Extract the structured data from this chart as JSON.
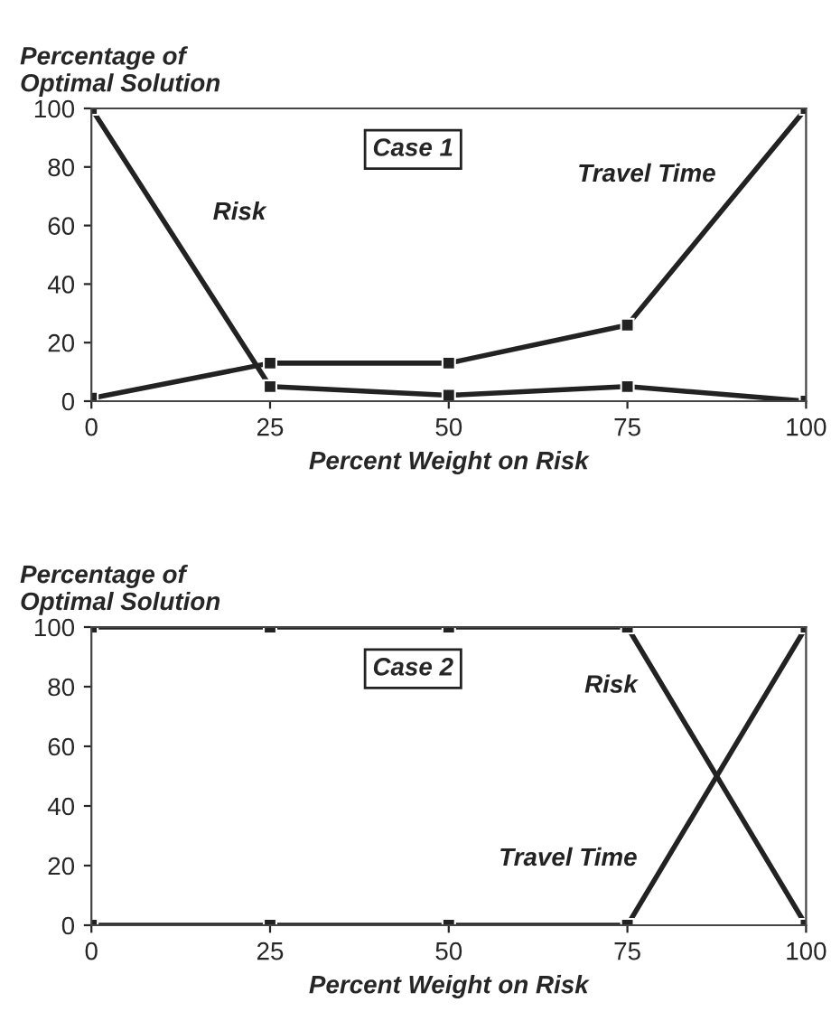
{
  "chart_data": [
    {
      "type": "line",
      "ylabel": "Percentage of\nOptimal Solution",
      "xlabel": "Percent Weight on Risk",
      "annotations": [
        "Case 1"
      ],
      "x": [
        0,
        25,
        50,
        75,
        100
      ],
      "xlim": [
        0,
        100
      ],
      "xticks": [
        0,
        25,
        50,
        75,
        100
      ],
      "ylim": [
        0,
        100
      ],
      "yticks": [
        0,
        20,
        40,
        60,
        80,
        100
      ],
      "marker": "square",
      "grid": false,
      "legend": false,
      "series": [
        {
          "name": "Risk",
          "color": "#222222",
          "values": [
            100,
            5,
            2,
            5,
            0
          ]
        },
        {
          "name": "Travel Time",
          "color": "#222222",
          "values": [
            1,
            13,
            13,
            26,
            100
          ]
        }
      ]
    },
    {
      "type": "line",
      "ylabel": "Percentage of\nOptimal Solution",
      "xlabel": "Percent Weight on Risk",
      "annotations": [
        "Case 2"
      ],
      "x": [
        0,
        25,
        50,
        75,
        100
      ],
      "xlim": [
        0,
        100
      ],
      "xticks": [
        0,
        25,
        50,
        75,
        100
      ],
      "ylim": [
        0,
        100
      ],
      "yticks": [
        0,
        20,
        40,
        60,
        80,
        100
      ],
      "marker": "square",
      "grid": false,
      "legend": false,
      "series": [
        {
          "name": "Risk",
          "color": "#222222",
          "values": [
            100,
            100,
            100,
            100,
            0
          ]
        },
        {
          "name": "Travel Time",
          "color": "#222222",
          "values": [
            0,
            0,
            0,
            0,
            100
          ]
        }
      ]
    }
  ]
}
